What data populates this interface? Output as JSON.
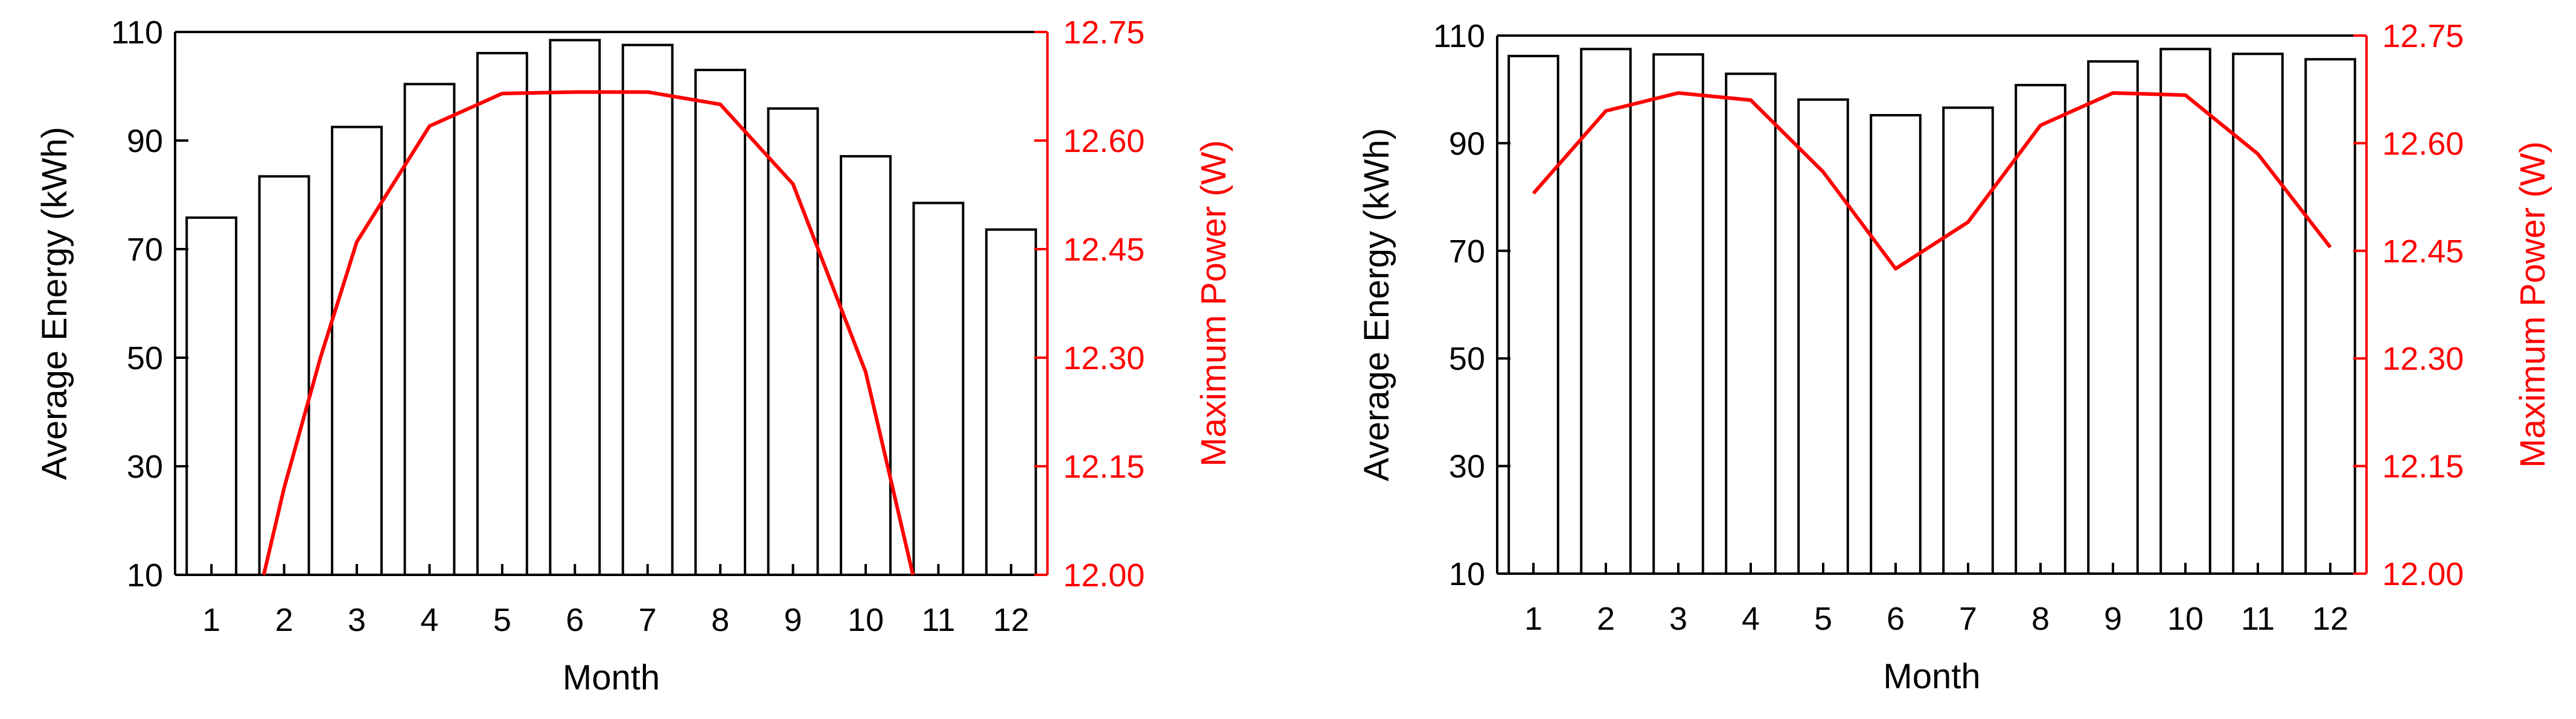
{
  "colors": {
    "energy": "#000000",
    "power": "#ff0000"
  },
  "chart_data": [
    {
      "type": "bar",
      "categories": [
        "1",
        "2",
        "3",
        "4",
        "5",
        "6",
        "7",
        "8",
        "9",
        "10",
        "11",
        "12"
      ],
      "xlabel": "Month",
      "ylabel": "Average  Energy (kWh)",
      "ylim": [
        10,
        110
      ],
      "yticks": [
        "10",
        "30",
        "50",
        "70",
        "90",
        "110"
      ],
      "y2label": "Maximum Power (W)",
      "y2lim": [
        12.0,
        12.75
      ],
      "y2ticks": [
        "12.00",
        "12.15",
        "12.30",
        "12.45",
        "12.60",
        "12.75"
      ],
      "grid": false,
      "series": [
        {
          "axis": "left",
          "type": "bar",
          "values": [
            75.8,
            83.4,
            92.5,
            100.4,
            106.1,
            108.5,
            107.6,
            103.0,
            95.9,
            87.1,
            78.5,
            73.6
          ]
        },
        {
          "axis": "right",
          "type": "line",
          "x": [
            1.72,
            2.0,
            2.5,
            3.0,
            4.0,
            5.0,
            6.0,
            7.0,
            8.0,
            9.0,
            10.0,
            10.65
          ],
          "values": [
            12.0,
            12.12,
            12.3,
            12.46,
            12.62,
            12.665,
            12.667,
            12.667,
            12.65,
            12.54,
            12.28,
            12.0
          ]
        }
      ]
    },
    {
      "type": "bar",
      "categories": [
        "1",
        "2",
        "3",
        "4",
        "5",
        "6",
        "7",
        "8",
        "9",
        "10",
        "11",
        "12"
      ],
      "xlabel": "Month",
      "ylabel": "Average  Energy (kWh)",
      "ylim": [
        10,
        110
      ],
      "yticks": [
        "10",
        "30",
        "50",
        "70",
        "90",
        "110"
      ],
      "y2label": "Maximum Power (W)",
      "y2lim": [
        12.0,
        12.75
      ],
      "y2ticks": [
        "12.00",
        "12.15",
        "12.30",
        "12.45",
        "12.60",
        "12.75"
      ],
      "grid": false,
      "series": [
        {
          "axis": "left",
          "type": "bar",
          "values": [
            106.2,
            107.5,
            106.5,
            102.9,
            98.1,
            95.2,
            96.6,
            100.8,
            105.2,
            107.5,
            106.6,
            105.6
          ]
        },
        {
          "axis": "right",
          "type": "line",
          "x": [
            1,
            2,
            3,
            4,
            5,
            6,
            7,
            8,
            9,
            10,
            11,
            12
          ],
          "values": [
            12.53,
            12.645,
            12.67,
            12.66,
            12.56,
            12.425,
            12.49,
            12.625,
            12.67,
            12.667,
            12.585,
            12.455
          ]
        }
      ]
    }
  ]
}
